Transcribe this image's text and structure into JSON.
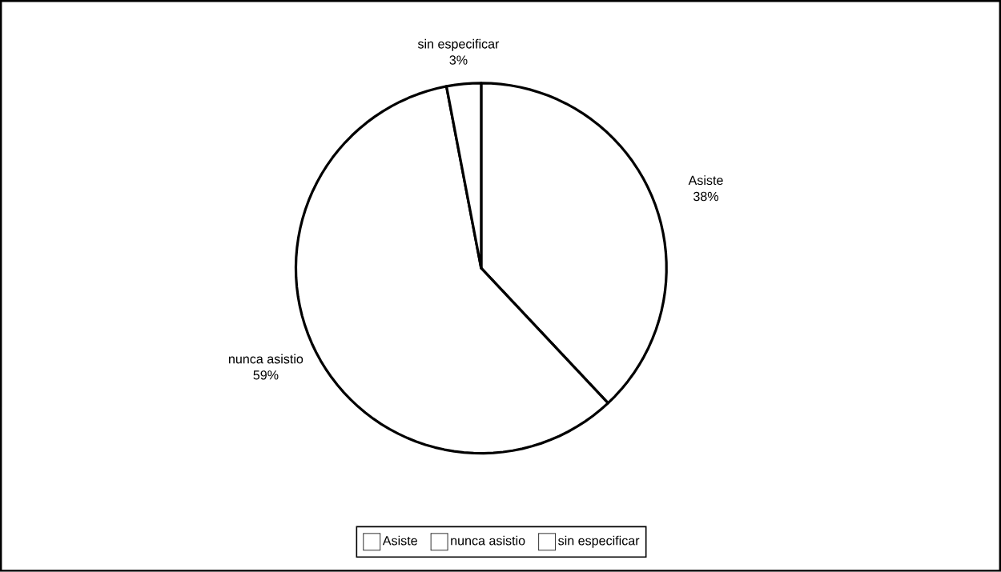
{
  "chart_data": {
    "type": "pie",
    "categories": [
      "Asiste",
      "nunca asistio",
      "sin especificar"
    ],
    "values": [
      38,
      59,
      3
    ],
    "colors": [
      "#ffffff",
      "#ffffff",
      "#ffffff"
    ],
    "value_labels": [
      "38%",
      "59%",
      "3%"
    ],
    "legend": "bottom"
  }
}
